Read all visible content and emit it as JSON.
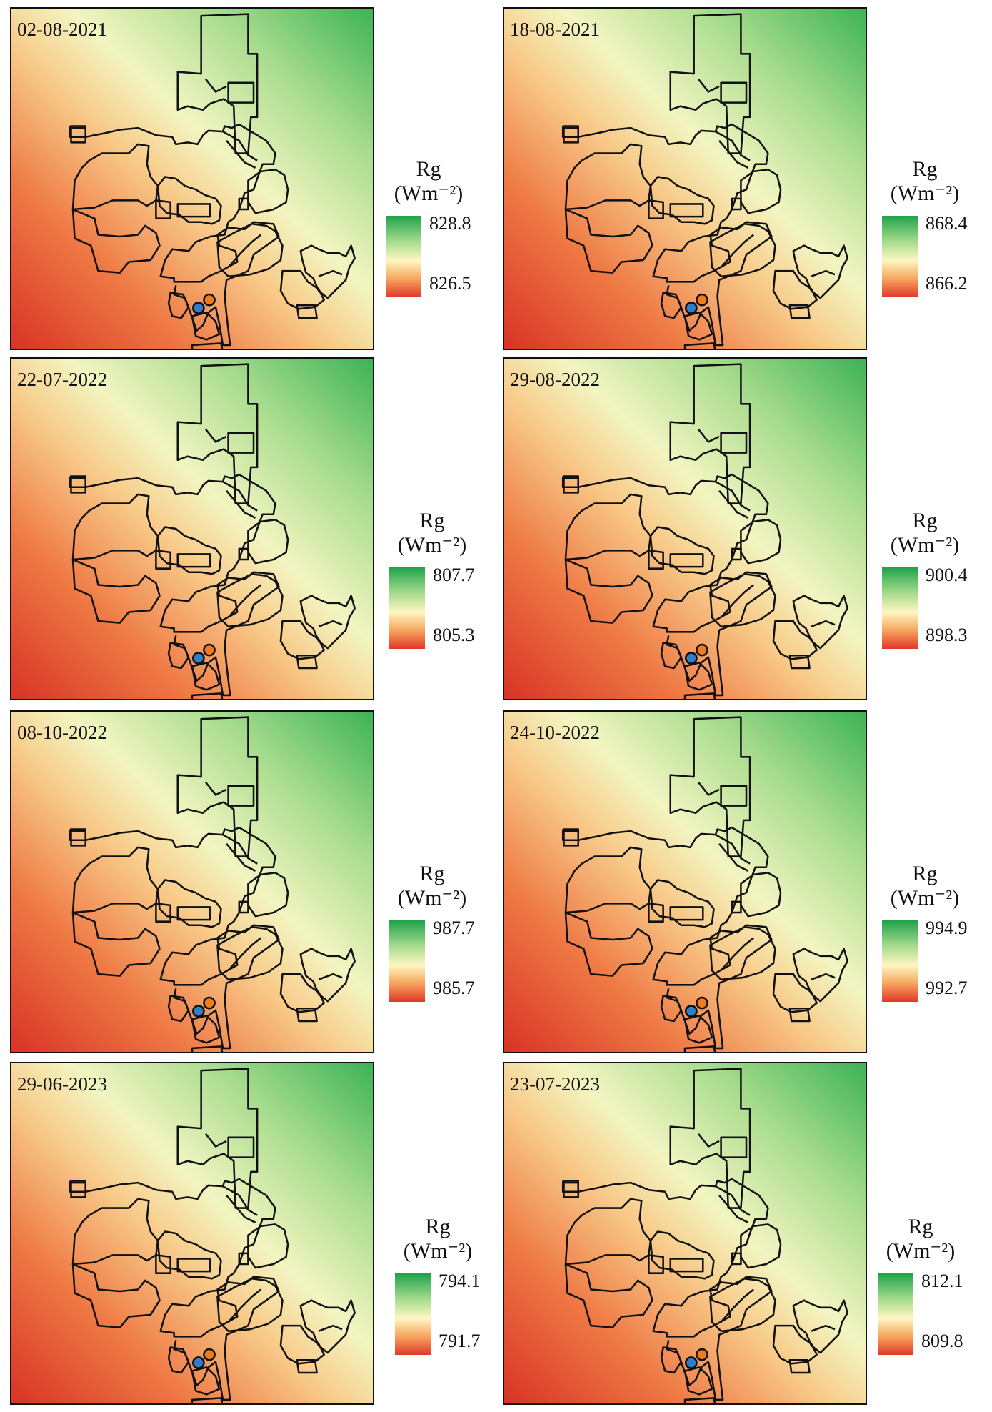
{
  "legend_title": "Rg",
  "legend_unit": "(Wm⁻²)",
  "colors": {
    "high": "#1fa24a",
    "mid": "#fff7c2",
    "low": "#e1382a",
    "outline": "#111111",
    "point_orange": "#f07d1a",
    "point_blue": "#2f7fc8"
  },
  "panels": [
    {
      "date": "02-08-2021",
      "max": "828.8",
      "min": "826.5",
      "gradient": 1.0
    },
    {
      "date": "18-08-2021",
      "max": "868.4",
      "min": "866.2",
      "gradient": 1.0
    },
    {
      "date": "22-07-2022",
      "max": "807.7",
      "min": "805.3",
      "gradient": 1.0
    },
    {
      "date": "29-08-2022",
      "max": "900.4",
      "min": "898.3",
      "gradient": 1.05
    },
    {
      "date": "08-10-2022",
      "max": "987.7",
      "min": "985.7",
      "gradient": 1.2
    },
    {
      "date": "24-10-2022",
      "max": "994.9",
      "min": "992.7",
      "gradient": 1.2
    },
    {
      "date": "29-06-2023",
      "max": "794.1",
      "min": "791.7",
      "gradient": 0.95
    },
    {
      "date": "23-07-2023",
      "max": "812.1",
      "min": "809.8",
      "gradient": 1.0
    }
  ]
}
